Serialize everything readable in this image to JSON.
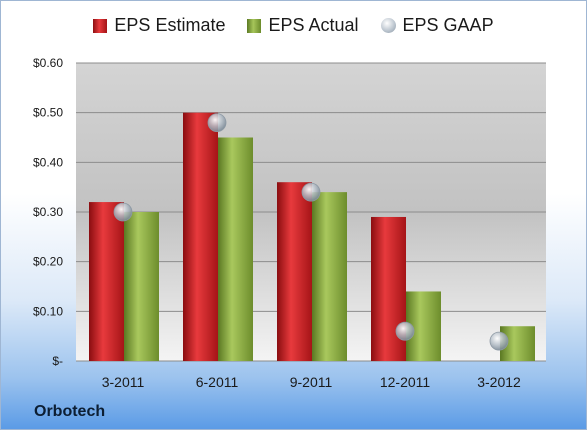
{
  "chart_data": {
    "type": "bar",
    "categories": [
      "3-2011",
      "6-2011",
      "9-2011",
      "12-2011",
      "3-2012"
    ],
    "series": [
      {
        "name": "EPS Estimate",
        "values": [
          0.32,
          0.5,
          0.36,
          0.29,
          null
        ],
        "color": "#c8191c"
      },
      {
        "name": "EPS Actual",
        "values": [
          0.3,
          0.45,
          0.34,
          0.14,
          0.07
        ],
        "color": "#8cab45"
      },
      {
        "name": "EPS GAAP",
        "values": [
          0.3,
          0.48,
          0.34,
          0.06,
          0.04
        ],
        "color": "#b8c2cc",
        "marker": "circle"
      }
    ],
    "y_ticks": [
      "$-",
      "$0.10",
      "$0.20",
      "$0.30",
      "$0.40",
      "$0.50",
      "$0.60"
    ],
    "ylim": [
      0,
      0.6
    ],
    "grid": true,
    "legend_position": "top"
  },
  "company": "Orbotech"
}
